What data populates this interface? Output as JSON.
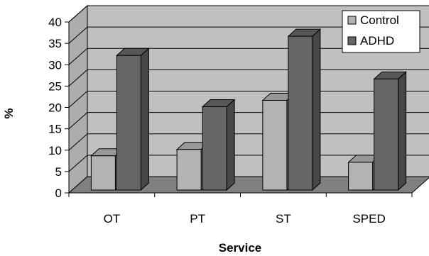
{
  "chart_data": {
    "type": "bar",
    "categories": [
      "OT",
      "PT",
      "ST",
      "SPED"
    ],
    "series": [
      {
        "name": "Control",
        "values": [
          8,
          9.5,
          21,
          6.5
        ],
        "color": "#b3b3b3"
      },
      {
        "name": "ADHD",
        "values": [
          31.5,
          19.5,
          36,
          26
        ],
        "color": "#666666"
      }
    ],
    "xlabel": "Service",
    "ylabel": "%",
    "ylim": [
      0,
      40
    ],
    "yticks": [
      "0",
      "5",
      "10",
      "15",
      "20",
      "25",
      "30",
      "35",
      "40"
    ],
    "grid": true,
    "legend": "top-right",
    "background_color": "#c0c0c0",
    "floor_color": "#808080"
  }
}
